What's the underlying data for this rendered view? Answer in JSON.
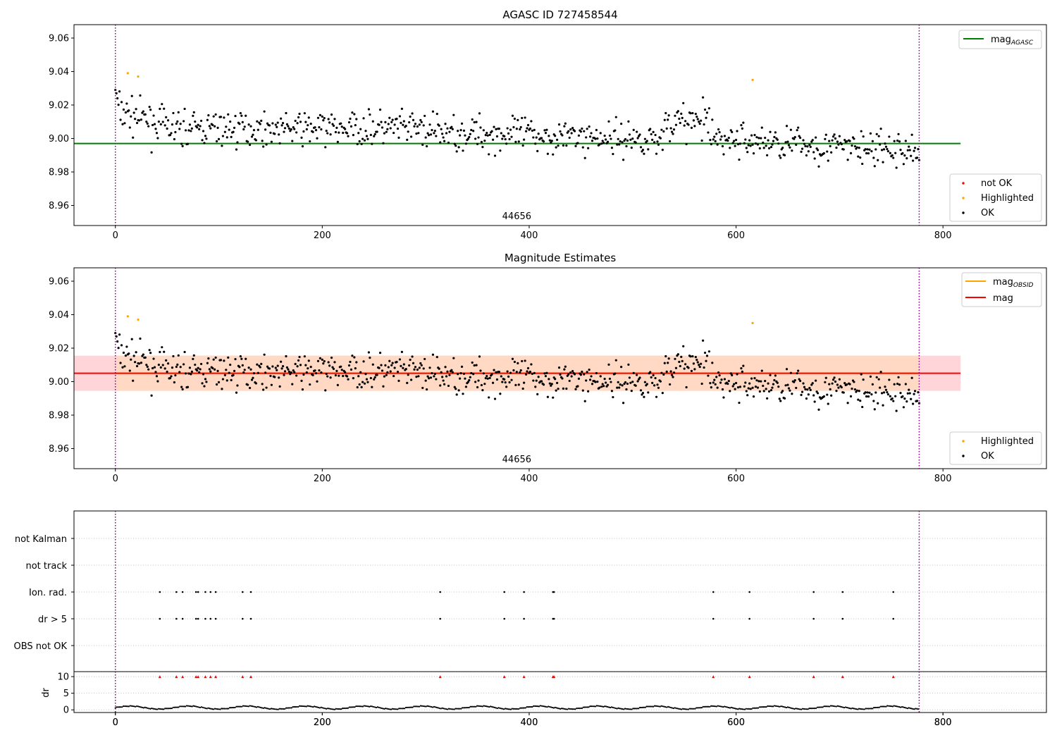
{
  "colors": {
    "agasc_line": "#008000",
    "obsid_line": "#ffa500",
    "mag_line": "#ff0000",
    "band_pink": "#ffd5da",
    "band_orange": "#ffd9c4",
    "ok": "#000000",
    "highlighted": "#ffa500",
    "not_ok": "#ff0000",
    "obs_boundary": "#800080",
    "grid": "#b0b0b0"
  },
  "chart_data": [
    {
      "type": "scatter",
      "title": "AGASC ID 727458544",
      "obsid_label": "44656",
      "xlim": [
        -40,
        900
      ],
      "ylim": [
        8.948,
        9.068
      ],
      "xticks": [
        0,
        200,
        400,
        600,
        800
      ],
      "yticks": [
        8.96,
        8.98,
        9.0,
        9.02,
        9.04,
        9.06
      ],
      "obs_boundaries": [
        0,
        777
      ],
      "mag_agasc": 8.997,
      "mag_agasc_xrange": [
        -40,
        817
      ],
      "legend_lines": [
        {
          "label_main": "mag",
          "label_sub": "AGASC",
          "color": "#008000"
        }
      ],
      "legend_points": [
        {
          "label": "not OK",
          "color": "#ff0000"
        },
        {
          "label": "Highlighted",
          "color": "#ffa500"
        },
        {
          "label": "OK",
          "color": "#000000"
        }
      ],
      "highlighted_points": [
        [
          12,
          9.039
        ],
        [
          22,
          9.037
        ],
        [
          616,
          9.035
        ]
      ],
      "ok_points": "series_A"
    },
    {
      "type": "scatter",
      "title": "Magnitude Estimates",
      "obsid_label": "44656",
      "xlim": [
        -40,
        900
      ],
      "ylim": [
        8.948,
        9.068
      ],
      "xticks": [
        0,
        200,
        400,
        600,
        800
      ],
      "yticks": [
        8.96,
        8.98,
        9.0,
        9.02,
        9.04,
        9.06
      ],
      "obs_boundaries": [
        0,
        777
      ],
      "mag": 9.005,
      "mag_band": [
        8.9945,
        9.0155
      ],
      "obsid_band": [
        8.9945,
        9.0155
      ],
      "band_xrange": [
        -40,
        817
      ],
      "legend_lines": [
        {
          "label_main": "mag",
          "label_sub": "OBSID",
          "color": "#ffa500"
        },
        {
          "label_main": "mag",
          "label_sub": "",
          "color": "#ff0000"
        }
      ],
      "legend_points": [
        {
          "label": "Highlighted",
          "color": "#ffa500"
        },
        {
          "label": "OK",
          "color": "#000000"
        }
      ],
      "highlighted_points": [
        [
          12,
          9.039
        ],
        [
          22,
          9.037
        ],
        [
          616,
          9.035
        ]
      ],
      "ok_points": "series_A"
    },
    {
      "type": "scatter",
      "title": "",
      "xlim": [
        -40,
        900
      ],
      "xticks": [
        0,
        200,
        400,
        600,
        800
      ],
      "obs_boundaries": [
        0,
        777
      ],
      "categories": [
        "not Kalman",
        "not track",
        "Ion. rad.",
        "dr > 5",
        "OBS not OK"
      ],
      "flag_times": [
        43,
        59,
        65,
        78,
        80,
        87,
        92,
        97,
        123,
        131,
        314,
        376,
        395,
        423,
        424,
        578,
        613,
        675,
        703,
        752
      ],
      "flagged_categories": [
        "Ion. rad.",
        "dr > 5"
      ]
    },
    {
      "type": "scatter",
      "title": "",
      "ylabel": "dr",
      "xlim": [
        -40,
        900
      ],
      "ylim": [
        -0.8,
        11.5
      ],
      "xticks": [
        0,
        200,
        400,
        600,
        800
      ],
      "yticks": [
        0,
        5,
        10
      ],
      "obs_boundaries": [
        0,
        777
      ],
      "clipped_value": 10,
      "clipped_times": [
        43,
        59,
        65,
        78,
        80,
        87,
        92,
        97,
        123,
        131,
        314,
        376,
        395,
        423,
        424,
        578,
        613,
        675,
        703,
        752
      ],
      "baseline_points": "dr_series"
    }
  ]
}
